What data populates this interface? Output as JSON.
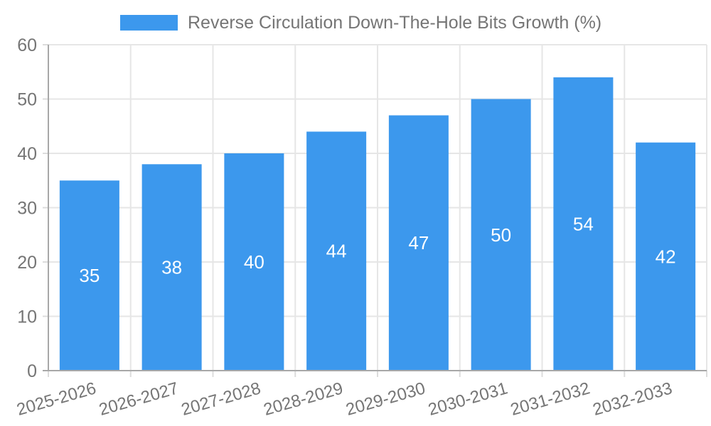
{
  "legend": {
    "label": "Reverse Circulation Down-The-Hole Bits Growth (%)"
  },
  "chart_data": {
    "type": "bar",
    "title": "Reverse Circulation Down-The-Hole Bits Growth (%)",
    "categories": [
      "2025-2026",
      "2026-2027",
      "2027-2028",
      "2028-2029",
      "2029-2030",
      "2030-2031",
      "2031-2032",
      "2032-2033"
    ],
    "values": [
      35,
      38,
      40,
      44,
      47,
      50,
      54,
      42
    ],
    "xlabel": "",
    "ylabel": "",
    "ylim": [
      0,
      60
    ],
    "yticks": [
      0,
      10,
      20,
      30,
      40,
      50,
      60
    ],
    "grid": true,
    "legend_position": "top",
    "x_tick_rotation_deg": -16,
    "value_labels_inside_bars": true,
    "colors": {
      "bar": "#3C98ED",
      "grid": "#E6E6E6",
      "tick": "#DCDCDC",
      "axis": "#A8A8A8",
      "text": "#757575",
      "value_label": "#FFFFFF",
      "background": "#FFFFFF"
    }
  }
}
